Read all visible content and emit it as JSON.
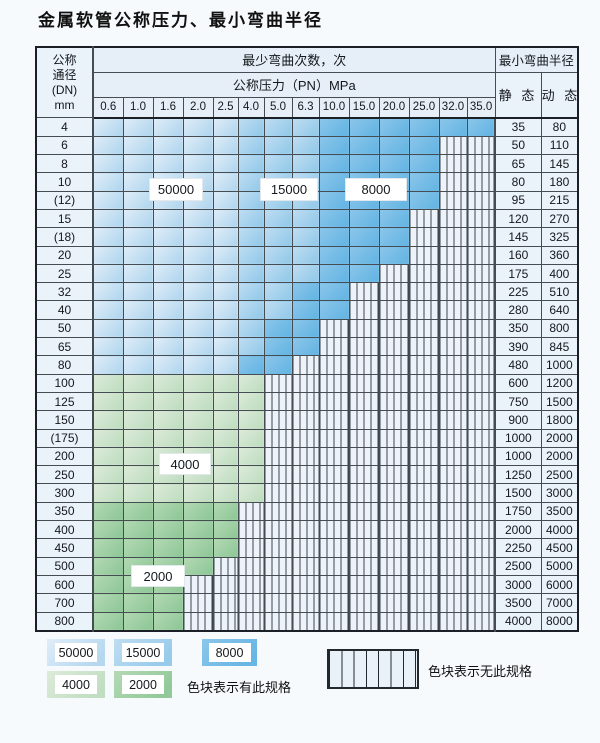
{
  "title": "金属软管公称压力、最小弯曲半径",
  "colors": {
    "zone_50000": "#b5d8ef",
    "zone_15000": "#96cbea",
    "zone_8000": "#67b6e4",
    "zone_4000": "#c1dec2",
    "zone_2000": "#92c99a",
    "no_spec_bg": "#edf3f9",
    "header_bg": "#e6eff8",
    "grid_line": "#454c52"
  },
  "chart_data": {
    "type": "table",
    "title": "金属软管公称压力、最小弯曲半径",
    "header": {
      "dn_lines": [
        "公称",
        "通径",
        "(DN)",
        "mm"
      ],
      "cycles_label": "最少弯曲次数，次",
      "pressure_label": "公称压力（PN）MPa",
      "pressure_mpa": [
        "0.6",
        "1.0",
        "1.6",
        "2.0",
        "2.5",
        "4.0",
        "5.0",
        "6.3",
        "10.0",
        "15.0",
        "20.0",
        "25.0",
        "32.0",
        "35.0"
      ],
      "radius_label": "最小弯曲半径",
      "static_label": "静 态",
      "dynamic_label": "动 态"
    },
    "zone_key": {
      "A": "50000",
      "B": "15000",
      "C": "8000",
      "D": "4000",
      "E": "2000",
      ".": "none"
    },
    "rows": [
      {
        "dn": "4",
        "static_r": "35",
        "dynamic_r": "80",
        "zones": "AAAAABBBCCCCCC"
      },
      {
        "dn": "6",
        "static_r": "50",
        "dynamic_r": "110",
        "zones": "AAAAABBBCCCC.."
      },
      {
        "dn": "8",
        "static_r": "65",
        "dynamic_r": "145",
        "zones": "AAAAABBBCCCC.."
      },
      {
        "dn": "10",
        "static_r": "80",
        "dynamic_r": "180",
        "zones": "AAAAABBBCCCC.."
      },
      {
        "dn": "(12)",
        "static_r": "95",
        "dynamic_r": "215",
        "zones": "AAAAABBBCCCC.."
      },
      {
        "dn": "15",
        "static_r": "120",
        "dynamic_r": "270",
        "zones": "AAAAABBBCCC..."
      },
      {
        "dn": "(18)",
        "static_r": "145",
        "dynamic_r": "325",
        "zones": "AAAAABBBCCC..."
      },
      {
        "dn": "20",
        "static_r": "160",
        "dynamic_r": "360",
        "zones": "AAAAABBBCCC..."
      },
      {
        "dn": "25",
        "static_r": "175",
        "dynamic_r": "400",
        "zones": "AAAAABBBCC...."
      },
      {
        "dn": "32",
        "static_r": "225",
        "dynamic_r": "510",
        "zones": "AAAAABBCC....."
      },
      {
        "dn": "40",
        "static_r": "280",
        "dynamic_r": "640",
        "zones": "AAAAABBCC....."
      },
      {
        "dn": "50",
        "static_r": "350",
        "dynamic_r": "800",
        "zones": "AAAAABCC......"
      },
      {
        "dn": "65",
        "static_r": "390",
        "dynamic_r": "845",
        "zones": "AAAAABCC......"
      },
      {
        "dn": "80",
        "static_r": "480",
        "dynamic_r": "1000",
        "zones": "AAAAACC......."
      },
      {
        "dn": "100",
        "static_r": "600",
        "dynamic_r": "1200",
        "zones": "DDDDDD........"
      },
      {
        "dn": "125",
        "static_r": "750",
        "dynamic_r": "1500",
        "zones": "DDDDDD........"
      },
      {
        "dn": "150",
        "static_r": "900",
        "dynamic_r": "1800",
        "zones": "DDDDDD........"
      },
      {
        "dn": "(175)",
        "static_r": "1000",
        "dynamic_r": "2000",
        "zones": "DDDDDD........"
      },
      {
        "dn": "200",
        "static_r": "1000",
        "dynamic_r": "2000",
        "zones": "DDDDDD........"
      },
      {
        "dn": "250",
        "static_r": "1250",
        "dynamic_r": "2500",
        "zones": "DDDDDD........"
      },
      {
        "dn": "300",
        "static_r": "1500",
        "dynamic_r": "3000",
        "zones": "DDDDDD........"
      },
      {
        "dn": "350",
        "static_r": "1750",
        "dynamic_r": "3500",
        "zones": "EEEEE........."
      },
      {
        "dn": "400",
        "static_r": "2000",
        "dynamic_r": "4000",
        "zones": "EEEEE........."
      },
      {
        "dn": "450",
        "static_r": "2250",
        "dynamic_r": "4500",
        "zones": "EEEEE........."
      },
      {
        "dn": "500",
        "static_r": "2500",
        "dynamic_r": "5000",
        "zones": "EEEE.........."
      },
      {
        "dn": "600",
        "static_r": "3000",
        "dynamic_r": "6000",
        "zones": "EEE..........."
      },
      {
        "dn": "700",
        "static_r": "3500",
        "dynamic_r": "7000",
        "zones": "EEE..........."
      },
      {
        "dn": "800",
        "static_r": "4000",
        "dynamic_r": "8000",
        "zones": "EEE..........."
      }
    ]
  },
  "zone_labels": {
    "l50000": "50000",
    "l15000": "15000",
    "l8000": "8000",
    "l4000": "4000",
    "l2000": "2000"
  },
  "legend": {
    "items": [
      {
        "value": "50000"
      },
      {
        "value": "15000"
      },
      {
        "value": "8000"
      },
      {
        "value": "4000"
      },
      {
        "value": "2000"
      }
    ],
    "has_spec_text": "色块表示有此规格",
    "no_spec_text": "色块表示无此规格"
  }
}
